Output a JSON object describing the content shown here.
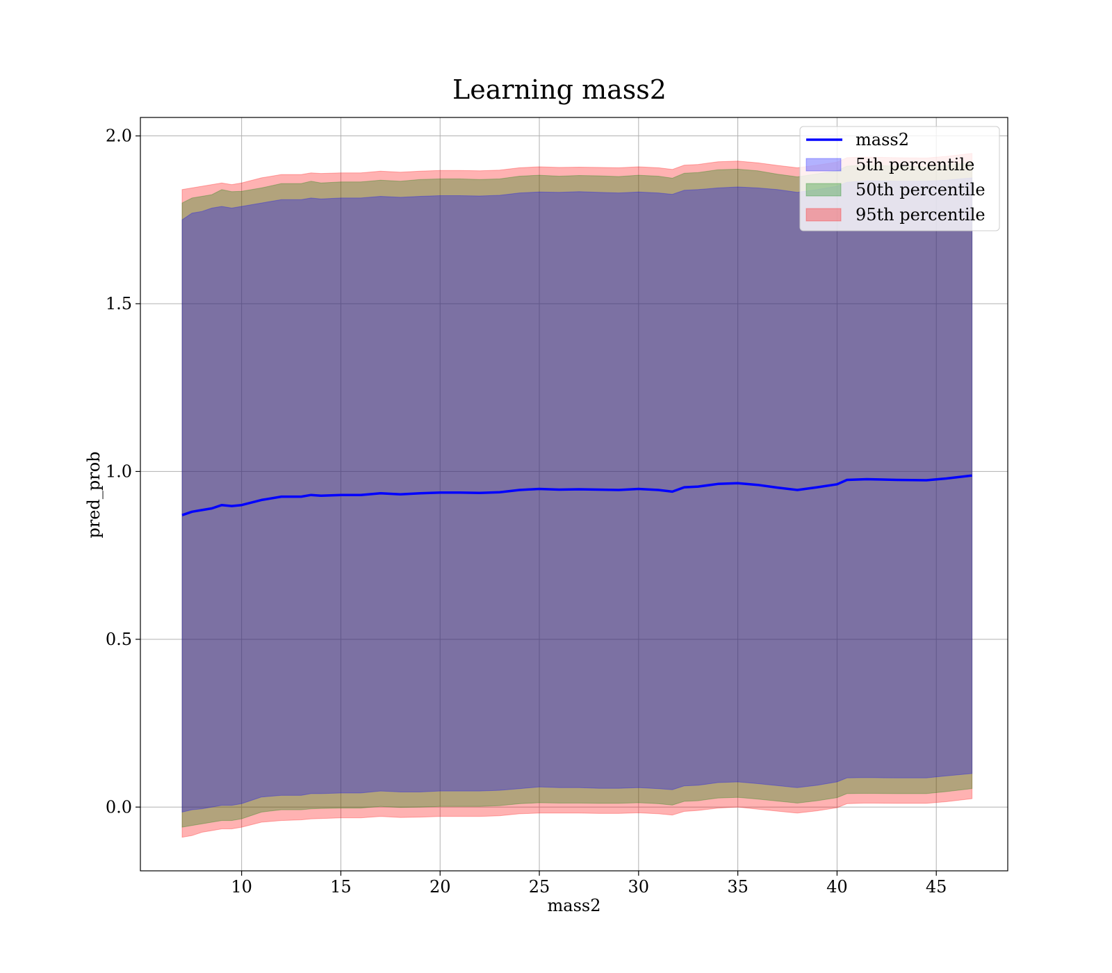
{
  "chart_data": {
    "type": "area",
    "title": "Learning mass2",
    "xlabel": "mass2",
    "ylabel": "pred_prob",
    "xlim": [
      4.9,
      48.6
    ],
    "ylim": [
      -0.19,
      2.055
    ],
    "xticks": [
      10,
      15,
      20,
      25,
      30,
      35,
      40,
      45
    ],
    "xtick_labels": [
      "10",
      "15",
      "20",
      "25",
      "30",
      "35",
      "40",
      "45"
    ],
    "yticks": [
      0.0,
      0.5,
      1.0,
      1.5,
      2.0
    ],
    "ytick_labels": [
      "0.0",
      "0.5",
      "1.0",
      "1.5",
      "2.0"
    ],
    "grid": true,
    "legend_position": "top-right",
    "x": [
      7.0,
      7.5,
      8.0,
      8.5,
      9.0,
      9.5,
      10.0,
      11.0,
      12.0,
      13.0,
      13.5,
      14.0,
      15.0,
      16.0,
      17.0,
      18.0,
      19.0,
      20.0,
      21.0,
      22.0,
      23.0,
      24.0,
      25.0,
      26.0,
      27.0,
      28.0,
      29.0,
      30.0,
      31.0,
      31.7,
      32.3,
      33.0,
      34.0,
      35.0,
      36.0,
      37.0,
      38.0,
      39.0,
      40.0,
      40.5,
      41.5,
      43.0,
      44.5,
      45.5,
      46.8
    ],
    "series": [
      {
        "name": "mass2",
        "kind": "line",
        "color": "#0000ff",
        "values": [
          0.87,
          0.88,
          0.885,
          0.89,
          0.9,
          0.897,
          0.9,
          0.915,
          0.925,
          0.925,
          0.93,
          0.928,
          0.93,
          0.93,
          0.935,
          0.932,
          0.935,
          0.937,
          0.937,
          0.936,
          0.938,
          0.945,
          0.948,
          0.946,
          0.947,
          0.946,
          0.945,
          0.948,
          0.945,
          0.94,
          0.953,
          0.955,
          0.963,
          0.965,
          0.96,
          0.952,
          0.945,
          0.953,
          0.962,
          0.975,
          0.977,
          0.975,
          0.974,
          0.979,
          0.988
        ]
      },
      {
        "name": "5th percentile",
        "kind": "band",
        "color": "#0000ff",
        "lower": [
          -0.015,
          -0.008,
          -0.005,
          0.0,
          0.005,
          0.005,
          0.01,
          0.03,
          0.035,
          0.035,
          0.04,
          0.04,
          0.042,
          0.042,
          0.048,
          0.045,
          0.045,
          0.048,
          0.048,
          0.048,
          0.05,
          0.055,
          0.06,
          0.058,
          0.058,
          0.056,
          0.056,
          0.058,
          0.055,
          0.052,
          0.063,
          0.065,
          0.073,
          0.075,
          0.07,
          0.064,
          0.058,
          0.065,
          0.075,
          0.087,
          0.088,
          0.087,
          0.087,
          0.093,
          0.1
        ],
        "upper": [
          1.75,
          1.77,
          1.775,
          1.785,
          1.79,
          1.785,
          1.79,
          1.8,
          1.81,
          1.81,
          1.815,
          1.812,
          1.815,
          1.815,
          1.82,
          1.817,
          1.82,
          1.822,
          1.822,
          1.821,
          1.823,
          1.83,
          1.833,
          1.832,
          1.834,
          1.832,
          1.83,
          1.833,
          1.83,
          1.826,
          1.838,
          1.84,
          1.845,
          1.848,
          1.845,
          1.84,
          1.832,
          1.84,
          1.85,
          1.862,
          1.866,
          1.865,
          1.865,
          1.868,
          1.875
        ]
      },
      {
        "name": "50th percentile",
        "kind": "band",
        "color": "#008000",
        "lower": [
          -0.06,
          -0.055,
          -0.05,
          -0.045,
          -0.04,
          -0.04,
          -0.035,
          -0.015,
          -0.008,
          -0.008,
          -0.005,
          -0.004,
          -0.003,
          -0.003,
          0.002,
          -0.001,
          0.0,
          0.002,
          0.002,
          0.002,
          0.004,
          0.01,
          0.013,
          0.012,
          0.012,
          0.011,
          0.011,
          0.013,
          0.01,
          0.006,
          0.017,
          0.019,
          0.027,
          0.029,
          0.024,
          0.018,
          0.012,
          0.019,
          0.028,
          0.04,
          0.041,
          0.04,
          0.04,
          0.046,
          0.055
        ]
      },
      {
        "name": "95th percentile",
        "kind": "band",
        "color": "#ff0000",
        "lower": [
          -0.09,
          -0.085,
          -0.075,
          -0.07,
          -0.065,
          -0.065,
          -0.06,
          -0.045,
          -0.04,
          -0.038,
          -0.035,
          -0.034,
          -0.032,
          -0.032,
          -0.028,
          -0.031,
          -0.03,
          -0.028,
          -0.028,
          -0.028,
          -0.026,
          -0.02,
          -0.018,
          -0.018,
          -0.018,
          -0.019,
          -0.019,
          -0.017,
          -0.02,
          -0.024,
          -0.013,
          -0.01,
          -0.003,
          0.0,
          -0.006,
          -0.012,
          -0.018,
          -0.011,
          -0.002,
          0.01,
          0.012,
          0.011,
          0.011,
          0.016,
          0.025
        ],
        "upper": [
          1.84,
          1.845,
          1.85,
          1.855,
          1.86,
          1.855,
          1.86,
          1.875,
          1.885,
          1.885,
          1.89,
          1.888,
          1.89,
          1.89,
          1.895,
          1.892,
          1.895,
          1.897,
          1.897,
          1.896,
          1.898,
          1.905,
          1.908,
          1.906,
          1.907,
          1.906,
          1.905,
          1.908,
          1.905,
          1.9,
          1.913,
          1.915,
          1.923,
          1.925,
          1.92,
          1.912,
          1.905,
          1.913,
          1.922,
          1.935,
          1.937,
          1.935,
          1.934,
          1.939,
          1.948
        ]
      }
    ]
  }
}
